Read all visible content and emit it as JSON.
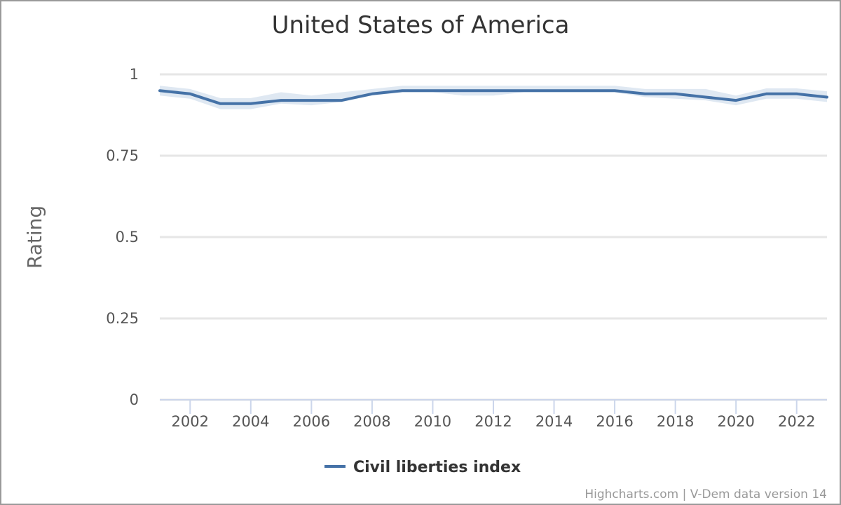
{
  "chart_data": {
    "type": "line",
    "title": "United States of America",
    "ylabel": "Rating",
    "xlabel": "",
    "ylim": [
      0,
      1
    ],
    "yticks": [
      "0",
      "0.25",
      "0.5",
      "0.75",
      "1"
    ],
    "xticks": [
      "2002",
      "2004",
      "2006",
      "2008",
      "2010",
      "2012",
      "2014",
      "2016",
      "2018",
      "2020",
      "2022"
    ],
    "x": [
      2001,
      2002,
      2003,
      2004,
      2005,
      2006,
      2007,
      2008,
      2009,
      2010,
      2011,
      2012,
      2013,
      2014,
      2015,
      2016,
      2017,
      2018,
      2019,
      2020,
      2021,
      2022,
      2023
    ],
    "series": [
      {
        "name": "Civil liberties index",
        "color": "#4572a7",
        "values": [
          0.95,
          0.94,
          0.91,
          0.91,
          0.92,
          0.92,
          0.92,
          0.94,
          0.95,
          0.95,
          0.95,
          0.95,
          0.95,
          0.95,
          0.95,
          0.95,
          0.94,
          0.94,
          0.93,
          0.92,
          0.94,
          0.94,
          0.93
        ],
        "lower": [
          0.935,
          0.925,
          0.893,
          0.893,
          0.91,
          0.905,
          0.915,
          0.935,
          0.945,
          0.945,
          0.935,
          0.935,
          0.945,
          0.945,
          0.945,
          0.945,
          0.93,
          0.925,
          0.92,
          0.905,
          0.925,
          0.925,
          0.915
        ],
        "upper": [
          0.965,
          0.955,
          0.927,
          0.927,
          0.945,
          0.935,
          0.945,
          0.955,
          0.965,
          0.965,
          0.965,
          0.965,
          0.965,
          0.965,
          0.965,
          0.965,
          0.955,
          0.955,
          0.955,
          0.935,
          0.957,
          0.957,
          0.948
        ]
      }
    ],
    "band_color": "#dbe5f1",
    "grid": true,
    "legend_position": "bottom-center",
    "credits": "Highcharts.com | V-Dem data version 14"
  }
}
